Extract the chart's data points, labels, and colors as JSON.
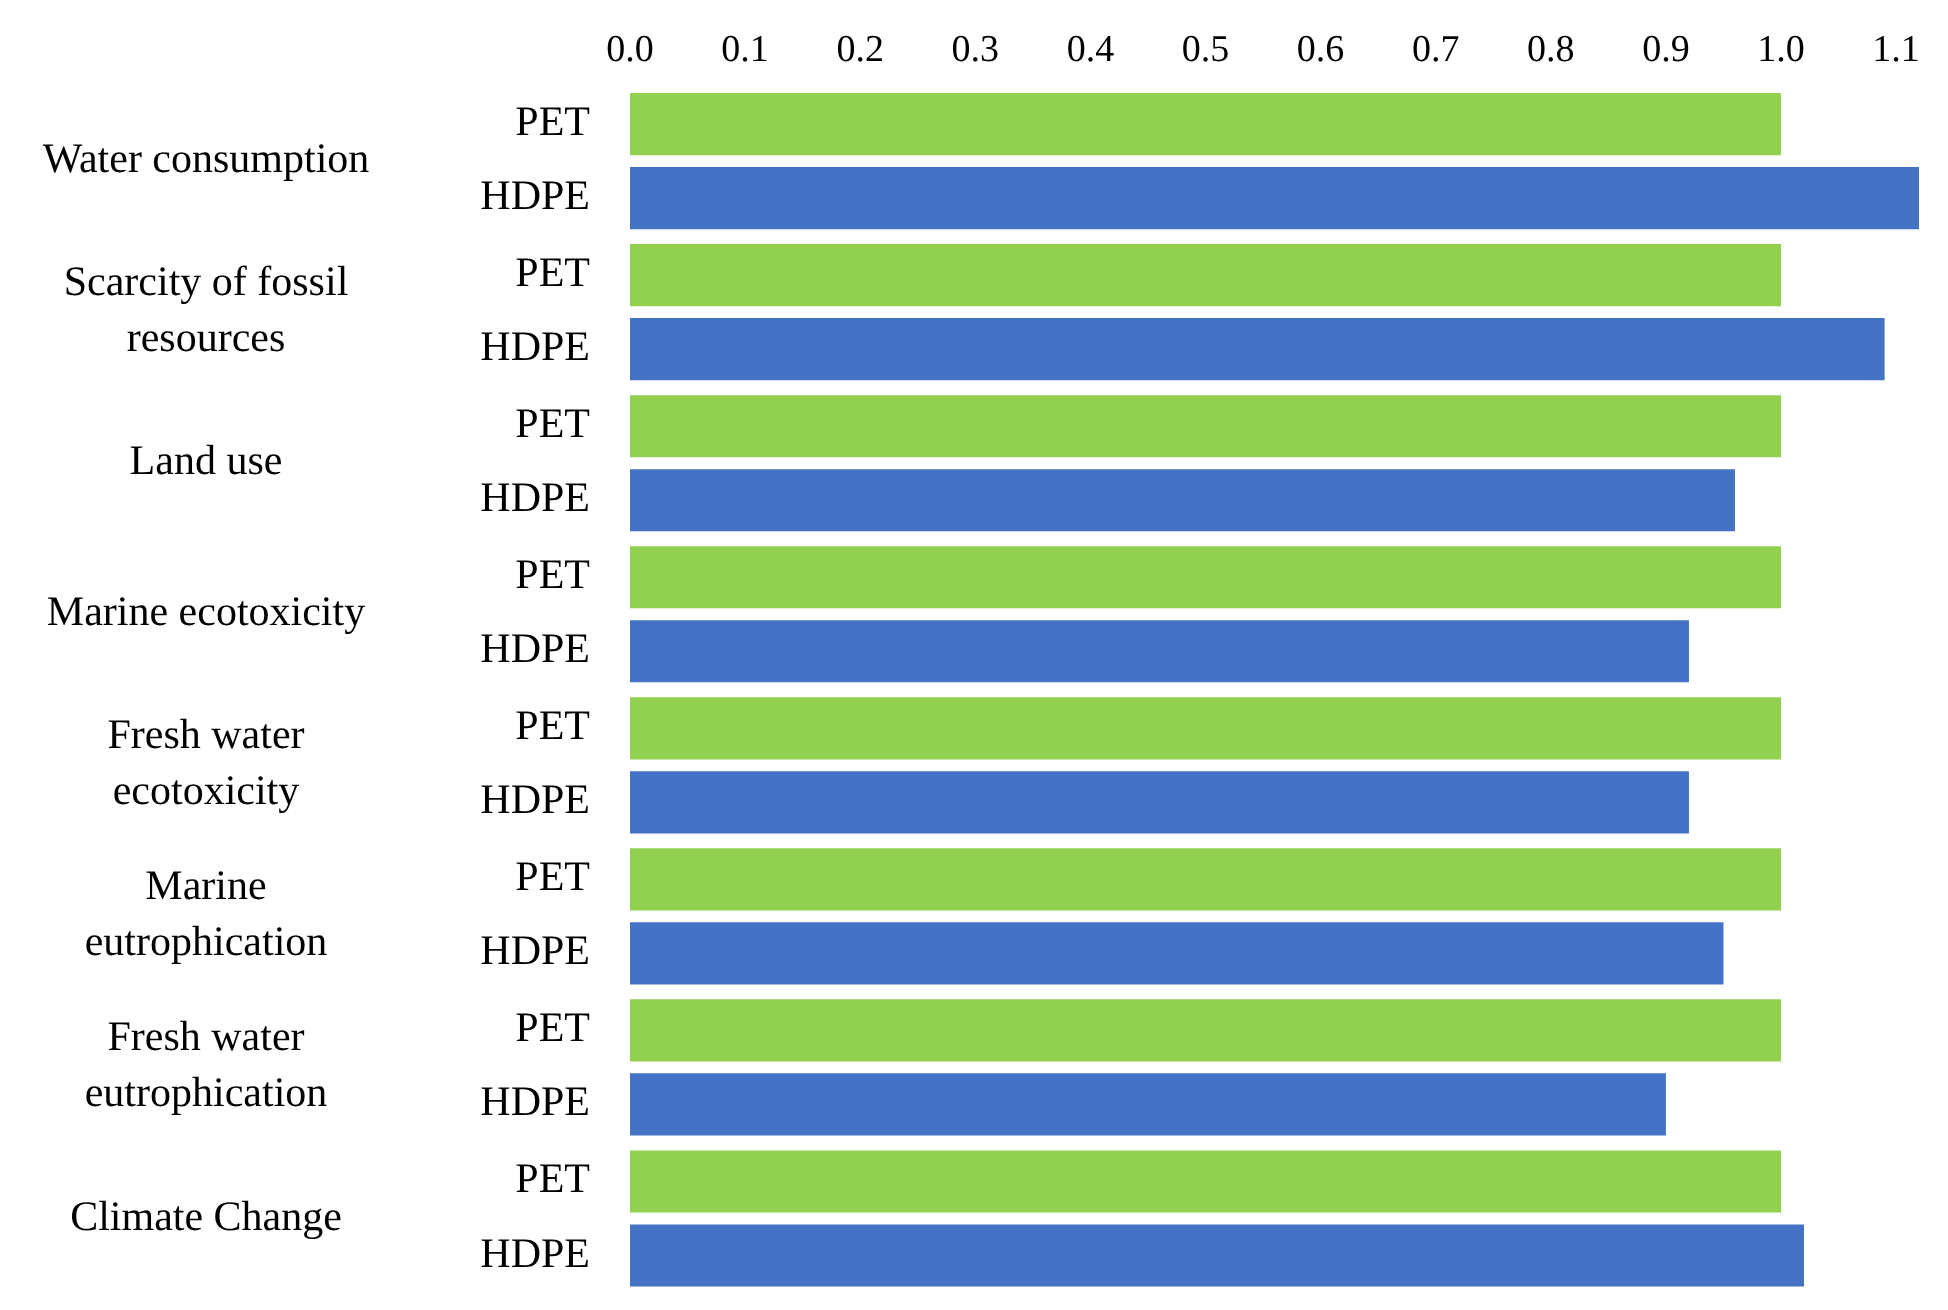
{
  "chart_data": {
    "type": "bar",
    "orientation": "horizontal",
    "categories": [
      "Water consumption",
      "Scarcity of fossil resources",
      "Land use",
      "Marine ecotoxicity",
      "Fresh water ecotoxicity",
      "Marine eutrophication",
      "Fresh water eutrophication",
      "Climate Change"
    ],
    "series": [
      {
        "name": "PET",
        "color": "#92d050",
        "values": [
          1.0,
          1.0,
          1.0,
          1.0,
          1.0,
          1.0,
          1.0,
          1.0
        ]
      },
      {
        "name": "HDPE",
        "color": "#4472c4",
        "values": [
          1.12,
          1.09,
          0.96,
          0.92,
          0.92,
          0.95,
          0.9,
          1.02
        ]
      }
    ],
    "xlim": [
      0,
      1.12
    ],
    "xticks": [
      {
        "value": 0,
        "label": "0.0"
      },
      0.1,
      0.2,
      0.3,
      0.4,
      0.5,
      0.6,
      0.7,
      0.8,
      0.9,
      {
        "value": 1,
        "label": "1.0"
      },
      1.1
    ],
    "grid": false,
    "legend": false
  }
}
